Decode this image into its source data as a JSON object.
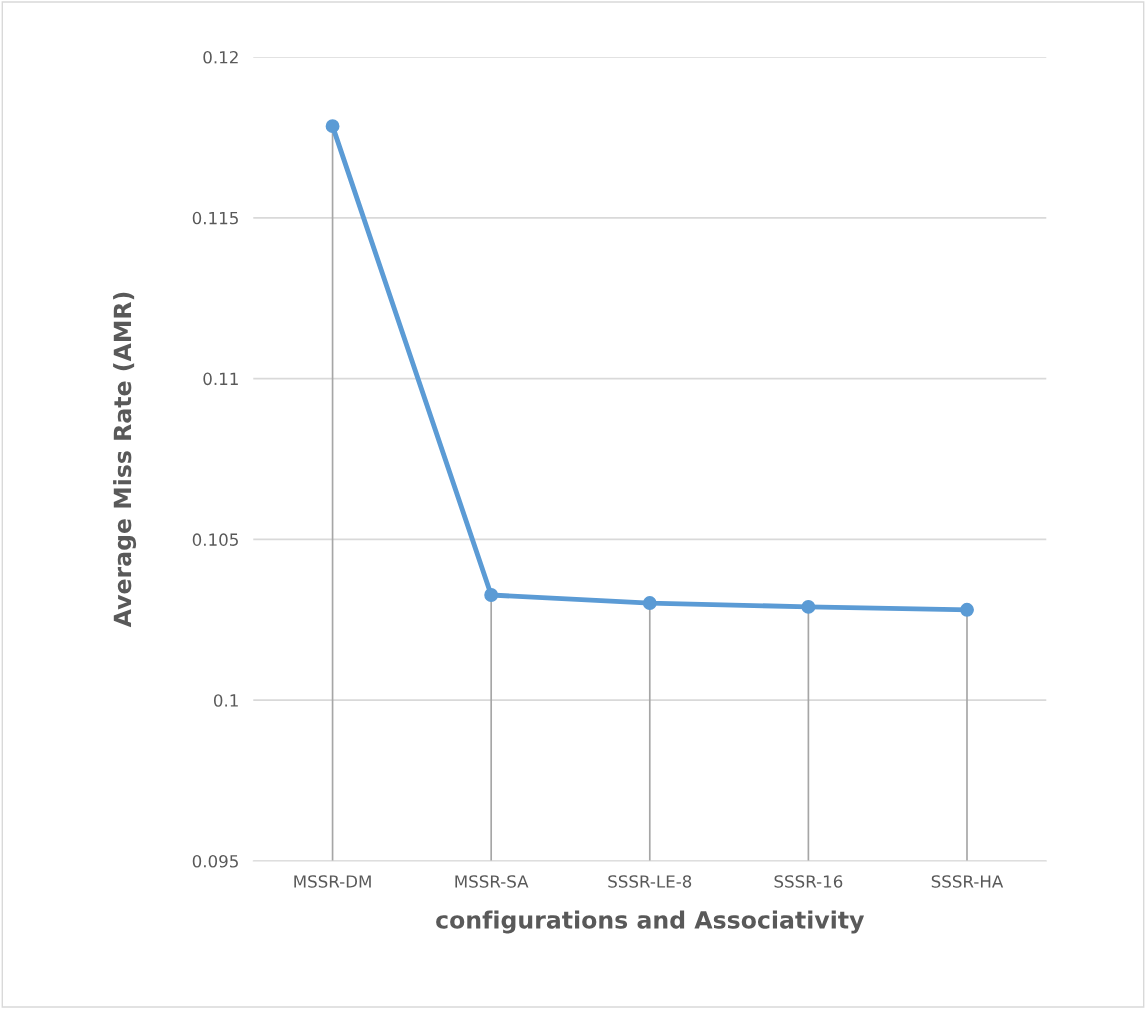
{
  "chart_data": {
    "type": "line",
    "xlabel": "configurations and Associativity",
    "ylabel": "Average Miss Rate (AMR)",
    "categories": [
      "MSSR-DM",
      "MSSR-SA",
      "SSSR-LE-8",
      "SSSR-16",
      "SSSR-HA"
    ],
    "series": [
      {
        "color": "#5b9bd5",
        "marker": "circle",
        "values": [
          0.11785,
          0.10327,
          0.10302,
          0.1029,
          0.10281
        ],
        "errors": [
          [
            0.095,
            0.11785
          ],
          [
            0.095,
            0.10327
          ],
          [
            0.095,
            0.10302
          ],
          [
            0.095,
            0.1029
          ],
          [
            0.095,
            0.10281
          ]
        ]
      }
    ],
    "ylim": [
      0.095,
      0.12
    ],
    "yticks": [
      0.095,
      0.1,
      0.105,
      0.11,
      0.115,
      0.12
    ],
    "grid": "y",
    "line_style": "solid",
    "legend": false
  }
}
